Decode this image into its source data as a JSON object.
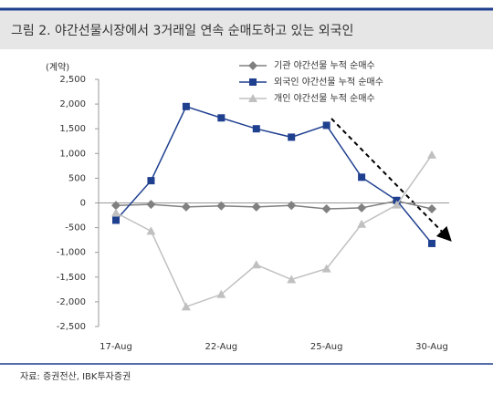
{
  "chart_data": {
    "type": "line",
    "title": "그림 2. 야간선물시장에서 3거래일 연속 순매도하고 있는 외국인",
    "y_label": "(계약)",
    "source": "자료: 증권전산, IBK투자증권",
    "categories": [
      "17-Aug",
      null,
      null,
      "22-Aug",
      null,
      null,
      "25-Aug",
      null,
      null,
      "30-Aug"
    ],
    "series": [
      {
        "name": "기관 야간선물 누적 순매수",
        "color": "#808080",
        "marker": "diamond",
        "values": [
          -50,
          -30,
          -80,
          -60,
          -80,
          -50,
          -120,
          -100,
          40,
          -120
        ]
      },
      {
        "name": "외국인 야간선물 누적 순매수",
        "color": "#1f3f8f",
        "marker": "square",
        "values": [
          -350,
          450,
          1950,
          1720,
          1500,
          1330,
          1570,
          520,
          50,
          -820
        ]
      },
      {
        "name": "개인 야간선물 누적 순매수",
        "color": "#c0c0c0",
        "marker": "triangle",
        "values": [
          -200,
          -570,
          -2100,
          -1850,
          -1250,
          -1550,
          -1330,
          -430,
          -40,
          970
        ]
      }
    ],
    "ylim": [
      -2500,
      2500
    ],
    "yticks": [
      {
        "value": -2500,
        "label": "-2,500"
      },
      {
        "value": -2000,
        "label": "-2,000"
      },
      {
        "value": -1500,
        "label": "-1,500"
      },
      {
        "value": -1000,
        "label": "-1,000"
      },
      -500,
      0,
      500,
      {
        "value": 1000,
        "label": "1,000"
      },
      {
        "value": 1500,
        "label": "1,500"
      },
      {
        "value": 2000,
        "label": "2,000"
      },
      {
        "value": 2500,
        "label": "2,500"
      }
    ]
  }
}
